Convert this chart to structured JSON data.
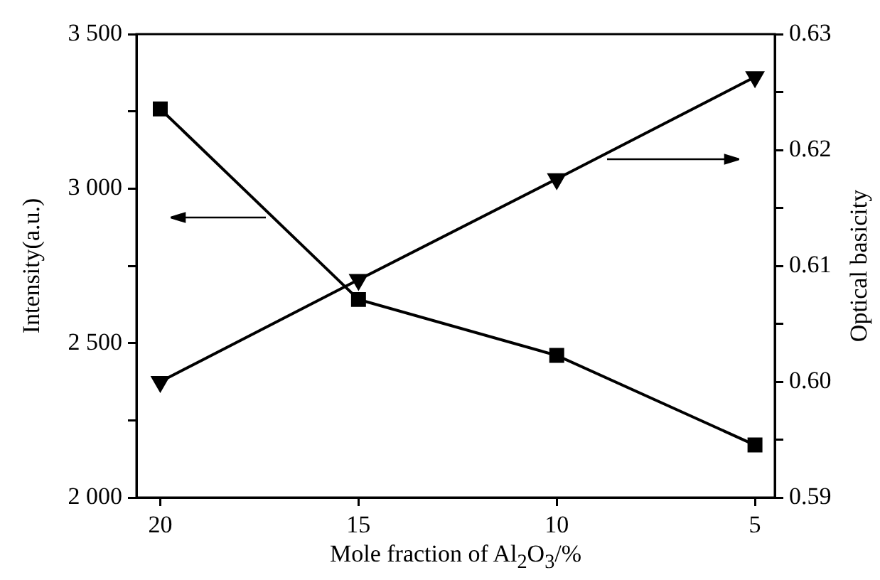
{
  "chart_data": {
    "type": "line",
    "xlabel": "Mole fraction of Al$_{2}$O$_{3}$/%",
    "ylabel": "Intensity(a.u.)",
    "y2label": "Optical basicity",
    "x": [
      20,
      15,
      10,
      5
    ],
    "series": [
      {
        "color": "#000000",
        "marker": "square",
        "values": [
          3258,
          2641,
          2460,
          2170
        ]
      },
      {
        "color": "#000000",
        "marker": "triangle",
        "axis": "y2",
        "values": [
          0.6,
          0.6088,
          0.6175,
          0.6263
        ]
      }
    ],
    "xlim": [
      20.6,
      4.5
    ],
    "xticks": [
      20,
      15,
      10,
      5
    ],
    "ylim": [
      2000,
      3500
    ],
    "yticks": [
      {
        "value": 2000,
        "label": "2 000"
      },
      {
        "value": 2250,
        "label": null
      },
      {
        "value": 2500,
        "label": "2 500"
      },
      {
        "value": 2750,
        "label": null
      },
      {
        "value": 3000,
        "label": "3 000"
      },
      {
        "value": 3250,
        "label": null
      },
      {
        "value": 3500,
        "label": "3 500"
      }
    ],
    "y2lim": [
      0.59,
      0.63
    ],
    "y2ticks": [
      {
        "value": 0.59,
        "label": "0.59"
      },
      {
        "value": 0.595,
        "label": null
      },
      {
        "value": 0.6,
        "label": "0.60"
      },
      {
        "value": 0.605,
        "label": null
      },
      {
        "value": 0.61,
        "label": "0.61"
      },
      {
        "value": 0.615,
        "label": null
      },
      {
        "value": 0.62,
        "label": "0.62"
      },
      {
        "value": 0.625,
        "label": null
      },
      {
        "value": 0.63,
        "label": "0.63"
      }
    ],
    "grid": false,
    "legend": false
  }
}
